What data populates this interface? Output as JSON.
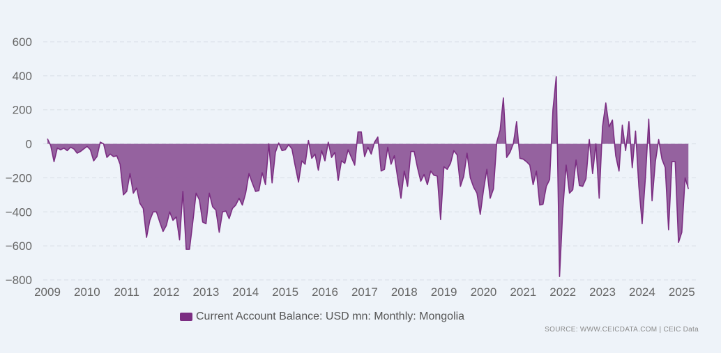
{
  "colors": {
    "series": "#7b2d82",
    "fill": "#8f5a9a",
    "grid": "#d8dee6",
    "text": "#666666"
  },
  "source_text": "SOURCE: WWW.CEICDATA.COM | CEIC Data",
  "chart_data": {
    "type": "area",
    "title": "",
    "xlabel": "",
    "ylabel": "",
    "ylim": [
      -800,
      600
    ],
    "yticks": [
      600,
      400,
      200,
      0,
      -200,
      -400,
      -600,
      -800
    ],
    "ytick_labels": [
      "600",
      "400",
      "200",
      "0",
      "−200",
      "−400",
      "−600",
      "−800"
    ],
    "xticks": [
      "2009",
      "2010",
      "2011",
      "2012",
      "2013",
      "2014",
      "2015",
      "2016",
      "2017",
      "2018",
      "2019",
      "2020",
      "2021",
      "2022",
      "2023",
      "2024",
      "2025"
    ],
    "xlim": [
      2009,
      2025.25
    ],
    "grid": true,
    "legend_position": "bottom-center",
    "series": [
      {
        "name": "Current Account Balance: USD mn: Monthly: Mongolia",
        "x_start": "2009-01",
        "frequency": "monthly",
        "values": [
          30,
          -10,
          -105,
          -25,
          -35,
          -25,
          -40,
          -20,
          -30,
          -55,
          -45,
          -30,
          -15,
          -35,
          -100,
          -75,
          10,
          0,
          -80,
          -60,
          -75,
          -70,
          -120,
          -300,
          -280,
          -175,
          -290,
          -260,
          -350,
          -380,
          -550,
          -450,
          -400,
          -400,
          -460,
          -515,
          -480,
          -400,
          -450,
          -430,
          -565,
          -280,
          -620,
          -620,
          -460,
          -290,
          -330,
          -460,
          -470,
          -290,
          -370,
          -390,
          -520,
          -400,
          -395,
          -440,
          -380,
          -360,
          -320,
          -360,
          -290,
          -175,
          -230,
          -280,
          -275,
          -170,
          -240,
          0,
          -230,
          -50,
          5,
          -40,
          -35,
          -5,
          -30,
          -130,
          -225,
          -100,
          -120,
          20,
          -85,
          -60,
          -155,
          -40,
          -100,
          10,
          -80,
          -50,
          -215,
          -100,
          -115,
          -35,
          -80,
          -125,
          70,
          70,
          -75,
          -20,
          -60,
          10,
          40,
          -160,
          -150,
          -20,
          -120,
          -70,
          -200,
          -320,
          -160,
          -250,
          -45,
          -45,
          -140,
          -220,
          -180,
          -240,
          -160,
          -185,
          -190,
          -445,
          -135,
          -150,
          -115,
          -40,
          -65,
          -250,
          -190,
          -55,
          -200,
          -255,
          -290,
          -415,
          -270,
          -150,
          -320,
          -265,
          10,
          80,
          270,
          -80,
          -50,
          0,
          130,
          -85,
          -90,
          -105,
          -125,
          -240,
          -160,
          -360,
          -355,
          -250,
          -210,
          200,
          395,
          -780,
          -380,
          -125,
          -290,
          -270,
          -95,
          -245,
          -250,
          -205,
          25,
          -175,
          0,
          -320,
          100,
          240,
          100,
          140,
          -70,
          -160,
          110,
          -40,
          130,
          -140,
          75,
          -250,
          -470,
          -195,
          145,
          -335,
          -105,
          25,
          -90,
          -140,
          -505,
          -105,
          -105,
          -580,
          -520,
          -200,
          -265
        ]
      }
    ]
  }
}
